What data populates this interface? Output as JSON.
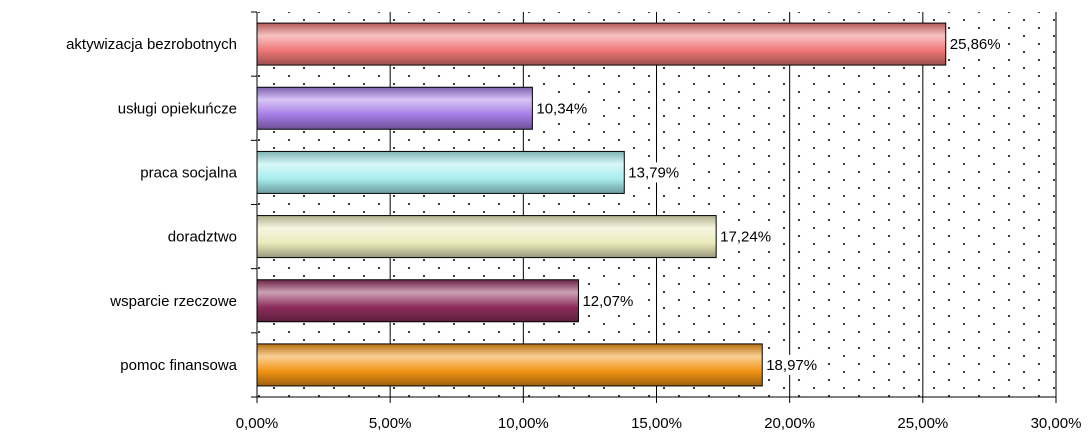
{
  "chart_data": {
    "type": "bar",
    "orientation": "horizontal",
    "title": "",
    "xlabel": "",
    "ylabel": "",
    "categories": [
      "aktywizacja bezrobotnych",
      "usługi opiekuńcze",
      "praca socjalna",
      "doradztwo",
      "wsparcie rzeczowe",
      "pomoc finansowa"
    ],
    "values": [
      25.86,
      10.34,
      13.79,
      17.24,
      12.07,
      18.97
    ],
    "value_labels": [
      "25,86%",
      "10,34%",
      "13,79%",
      "17,24%",
      "12,07%",
      "18,97%"
    ],
    "bar_colors": [
      "#f07878",
      "#a67ee8",
      "#a8eef0",
      "#ecebbc",
      "#8e2e5c",
      "#f29414"
    ],
    "xlim": [
      0,
      30
    ],
    "xticks": [
      0,
      5,
      10,
      15,
      20,
      25,
      30
    ],
    "xtick_labels": [
      "0,00%",
      "5,00%",
      "10,00%",
      "15,00%",
      "20,00%",
      "25,00%",
      "30,00%"
    ],
    "grid": "vertical",
    "background_pattern": "dotted",
    "legend": "none"
  }
}
